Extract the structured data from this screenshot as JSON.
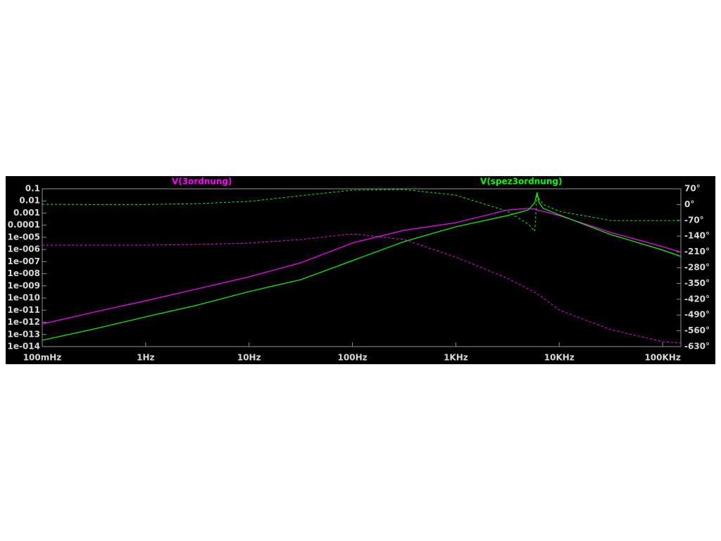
{
  "chart_data": {
    "type": "bode",
    "xscale": "log",
    "yscale": "log",
    "xlim": [
      0.1,
      150000
    ],
    "ylim": [
      1e-14,
      0.1
    ],
    "y2lim": [
      -630,
      70
    ],
    "xticks": [
      {
        "value": 0.1,
        "label": "100mHz"
      },
      {
        "value": 1,
        "label": "1Hz"
      },
      {
        "value": 10,
        "label": "10Hz"
      },
      {
        "value": 100,
        "label": "100Hz"
      },
      {
        "value": 1000,
        "label": "1KHz"
      },
      {
        "value": 10000,
        "label": "10KHz"
      },
      {
        "value": 100000,
        "label": "100KHz"
      }
    ],
    "yticks": [
      0.1,
      0.01,
      0.001,
      0.0001,
      {
        "value": 1e-05,
        "label": "1e-005"
      },
      {
        "value": 1e-06,
        "label": "1e-006"
      },
      {
        "value": 1e-07,
        "label": "1e-007"
      },
      {
        "value": 1e-08,
        "label": "1e-008"
      },
      {
        "value": 1e-09,
        "label": "1e-009"
      },
      {
        "value": 1e-10,
        "label": "1e-010"
      },
      {
        "value": 1e-11,
        "label": "1e-011"
      },
      {
        "value": 1e-12,
        "label": "1e-012"
      },
      {
        "value": 1e-13,
        "label": "1e-013"
      },
      {
        "value": 1e-14,
        "label": "1e-014"
      }
    ],
    "y2ticks": [
      {
        "value": 70,
        "label": "70°"
      },
      {
        "value": 0,
        "label": "0°"
      },
      {
        "value": -70,
        "label": "-70°"
      },
      {
        "value": -140,
        "label": "-140°"
      },
      {
        "value": -210,
        "label": "-210°"
      },
      {
        "value": -280,
        "label": "-280°"
      },
      {
        "value": -350,
        "label": "-350°"
      },
      {
        "value": -420,
        "label": "-420°"
      },
      {
        "value": -490,
        "label": "-490°"
      },
      {
        "value": -560,
        "label": "-560°"
      },
      {
        "value": -630,
        "label": "-630°"
      }
    ],
    "x": [
      0.1,
      0.316,
      1,
      3.16,
      10,
      31.6,
      100,
      316,
      1000,
      3160,
      5000,
      5800,
      6100,
      6400,
      7000,
      10000,
      31600,
      100000,
      150000
    ],
    "series": [
      {
        "name": "V(3ordnung)",
        "color": "#ff00ff",
        "values": [
          7.2e-13,
          6.9e-12,
          5.9e-11,
          5.7e-10,
          5.6e-09,
          8.1e-08,
          3.4e-06,
          3.8e-05,
          0.00016,
          0.0018,
          0.0024,
          0.0021,
          0.0018,
          0.0016,
          0.0014,
          0.00062,
          2.5e-05,
          1.7e-06,
          6e-07
        ],
        "phase": [
          -180,
          -180,
          -180,
          -177,
          -171,
          -155,
          -130,
          -155,
          -233,
          -327,
          -374,
          -389,
          -396,
          -402,
          -414,
          -468,
          -555,
          -608,
          -614
        ]
      },
      {
        "name": "V(spez3ordnung)",
        "color": "#00ff00",
        "values": [
          3.3e-14,
          2.8e-13,
          2.8e-12,
          2.6e-11,
          3.4e-10,
          3.2e-09,
          1.2e-07,
          4.5e-06,
          7.4e-05,
          0.00062,
          0.0018,
          0.0069,
          0.051,
          0.0069,
          0.0024,
          0.00071,
          1.7e-05,
          8.9e-07,
          2.7e-07
        ],
        "phase": [
          1,
          0,
          0,
          4,
          14,
          39,
          64,
          67,
          42,
          -30,
          -86,
          -118,
          48,
          23,
          1,
          -30,
          -71,
          -71,
          -71
        ]
      }
    ]
  }
}
